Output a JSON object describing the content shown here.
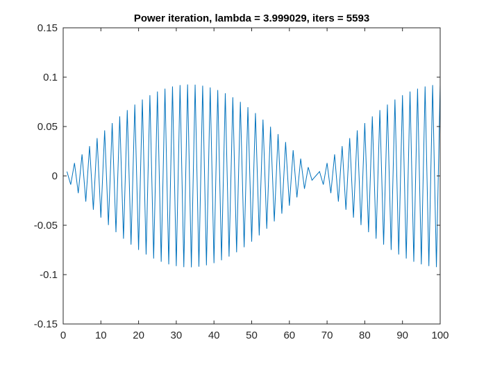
{
  "chart_data": {
    "type": "line",
    "title": "Power iteration, lambda = 3.999029, iters = 5593",
    "xlabel": "",
    "ylabel": "",
    "xlim": [
      0,
      100
    ],
    "ylim": [
      -0.15,
      0.15
    ],
    "x_ticks": [
      0,
      10,
      20,
      30,
      40,
      50,
      60,
      70,
      80,
      90,
      100
    ],
    "x_tick_labels": [
      "0",
      "10",
      "20",
      "30",
      "40",
      "50",
      "60",
      "70",
      "80",
      "90",
      "100"
    ],
    "y_ticks": [
      0.15,
      0.1,
      0.05,
      0,
      -0.05,
      -0.1,
      -0.15
    ],
    "y_tick_labels": [
      "0.15",
      "0.1",
      "0.05",
      "0",
      "-0.05",
      "-0.1",
      "-0.15"
    ],
    "grid": false,
    "series": [
      {
        "color": "#0072bd",
        "x": [
          1,
          2,
          3,
          4,
          5,
          6,
          7,
          8,
          9,
          10,
          11,
          12,
          13,
          14,
          15,
          16,
          17,
          18,
          19,
          20,
          21,
          22,
          23,
          24,
          25,
          26,
          27,
          28,
          29,
          30,
          31,
          32,
          33,
          34,
          35,
          36,
          37,
          38,
          39,
          40,
          41,
          42,
          43,
          44,
          45,
          46,
          47,
          48,
          49,
          50,
          51,
          52,
          53,
          54,
          55,
          56,
          57,
          58,
          59,
          60,
          61,
          62,
          63,
          64,
          65,
          66,
          67,
          68,
          69,
          70,
          71,
          72,
          73,
          74,
          75,
          76,
          77,
          78,
          79,
          80,
          81,
          82,
          83,
          84,
          85,
          86,
          87,
          88,
          89,
          90,
          91,
          92,
          93,
          94,
          95,
          96,
          97,
          98,
          99,
          100
        ],
        "y": [
          0.0044,
          -0.0088,
          0.0131,
          -0.0175,
          0.0218,
          -0.026,
          0.0302,
          -0.0343,
          0.0383,
          -0.0423,
          0.0461,
          -0.0498,
          0.0535,
          -0.057,
          0.0603,
          -0.0636,
          0.0666,
          -0.0696,
          0.0723,
          -0.075,
          0.0774,
          -0.0797,
          0.0818,
          -0.0837,
          0.0855,
          -0.087,
          0.0884,
          -0.0896,
          0.0906,
          -0.0914,
          0.092,
          -0.0924,
          0.0926,
          -0.0926,
          0.0924,
          -0.092,
          0.0914,
          -0.0906,
          0.0896,
          -0.0884,
          0.087,
          -0.0855,
          0.0837,
          -0.0818,
          0.0797,
          -0.0774,
          0.075,
          -0.0723,
          0.0696,
          -0.0666,
          0.0636,
          -0.0603,
          0.057,
          -0.0535,
          0.0498,
          -0.0461,
          0.0423,
          -0.0383,
          0.0343,
          -0.0302,
          0.026,
          -0.0218,
          0.0175,
          -0.0131,
          0.0088,
          -0.0044,
          0.0,
          0.0044,
          -0.0088,
          0.0131,
          -0.0175,
          0.0218,
          -0.026,
          0.0302,
          -0.0343,
          0.0383,
          -0.0423,
          0.0461,
          -0.0498,
          0.0535,
          -0.057,
          0.0603,
          -0.0636,
          0.0666,
          -0.0696,
          0.0723,
          -0.075,
          0.0774,
          -0.0797,
          0.0818,
          -0.0837,
          0.0855,
          -0.087,
          0.0884,
          -0.0896,
          0.0906,
          -0.0914,
          0.092,
          -0.0924,
          0.0926
        ]
      }
    ]
  }
}
